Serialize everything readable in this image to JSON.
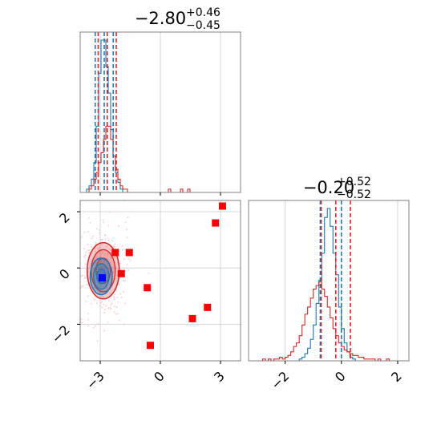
{
  "colors": {
    "blue": "#1f77b4",
    "red": "#d62728",
    "marker_red": "#ff0000",
    "marker_blue": "#0000ff",
    "grid": "#cccccc",
    "frame": "#808080"
  },
  "chart_data": [
    {
      "type": "histogram",
      "panel": "marginal-param1",
      "title_value": "−2.80",
      "title_plus": "+0.46",
      "title_minus": "−0.45",
      "xlim": [
        -4.0,
        4.0
      ],
      "grid": true,
      "dashed_lines": {
        "blue": [
          -3.25,
          -2.8,
          -2.35
        ],
        "red": [
          -3.1,
          -2.65,
          -2.2
        ]
      },
      "series": [
        {
          "color": "blue",
          "bin_width": 0.12,
          "bins_start": -3.8,
          "counts": [
            0,
            1,
            2,
            4,
            9,
            20,
            36,
            46,
            46,
            38,
            30,
            19,
            11,
            6,
            3,
            1,
            0
          ]
        },
        {
          "color": "red",
          "bin_width": 0.12,
          "bins_start": -3.8,
          "counts": [
            0,
            0,
            1,
            2,
            4,
            6,
            9,
            12,
            16,
            20,
            20,
            16,
            11,
            7,
            4,
            2,
            1,
            1,
            0,
            0,
            0,
            0,
            0,
            0,
            0,
            0,
            0,
            0,
            0,
            0,
            0,
            0,
            0,
            0,
            0,
            1,
            0,
            0,
            0,
            0,
            1,
            0,
            0,
            1,
            0,
            0,
            0,
            0,
            0,
            0,
            0,
            0,
            0,
            0,
            0,
            0,
            0,
            0,
            0,
            0
          ]
        }
      ]
    },
    {
      "type": "scatter",
      "panel": "joint-param1-param2",
      "xlim": [
        -4.0,
        4.0
      ],
      "ylim": [
        -3.3,
        2.4
      ],
      "x_ticks": [
        "−3",
        "0",
        "3"
      ],
      "x_tick_values": [
        -3,
        0,
        3
      ],
      "y_ticks": [
        "2",
        "0",
        "−2"
      ],
      "y_tick_values": [
        2,
        0,
        -2
      ],
      "grid": true,
      "red_markers": [
        {
          "x": 3.1,
          "y": 2.2
        },
        {
          "x": 2.75,
          "y": 1.6
        },
        {
          "x": -2.25,
          "y": 0.55
        },
        {
          "x": -1.55,
          "y": 0.55
        },
        {
          "x": -1.95,
          "y": -0.2
        },
        {
          "x": -0.65,
          "y": -0.7
        },
        {
          "x": 2.35,
          "y": -1.4
        },
        {
          "x": 1.6,
          "y": -1.8
        },
        {
          "x": -0.5,
          "y": -2.75
        }
      ],
      "blue_marker": {
        "x": -2.9,
        "y": -0.35
      },
      "red_contour": {
        "cx": -2.85,
        "cy": -0.1,
        "sx": 0.8,
        "sy": 1.0
      },
      "blue_contour": {
        "cx": -2.95,
        "cy": -0.3,
        "sx": 0.55,
        "sy": 0.65
      }
    },
    {
      "type": "histogram",
      "panel": "marginal-param2",
      "title_value": "−0.20",
      "title_plus": "+0.52",
      "title_minus": "−0.52",
      "xlim": [
        -3.3,
        2.4
      ],
      "x_ticks": [
        "−2",
        "0",
        "2"
      ],
      "x_tick_values": [
        -2,
        0,
        2
      ],
      "grid": true,
      "dashed_lines": {
        "blue": [
          -0.75,
          -0.73,
          0.0
        ],
        "red": [
          -0.72,
          -0.2,
          0.32
        ]
      },
      "series": [
        {
          "color": "blue",
          "bin_width": 0.1,
          "bins_start": -1.6,
          "counts": [
            0,
            1,
            2,
            4,
            7,
            12,
            20,
            32,
            45,
            60,
            80,
            85,
            75,
            60,
            48,
            30,
            18,
            10,
            5,
            2,
            1,
            0
          ]
        },
        {
          "color": "red",
          "bin_width": 0.1,
          "bins_start": -3.0,
          "counts": [
            0,
            0,
            1,
            0,
            1,
            0,
            1,
            1,
            2,
            1,
            2,
            3,
            5,
            8,
            10,
            14,
            20,
            26,
            30,
            35,
            40,
            42,
            44,
            40,
            36,
            30,
            24,
            18,
            14,
            10,
            8,
            6,
            5,
            4,
            3,
            3,
            2,
            2,
            1,
            1,
            1,
            1,
            0,
            1,
            0,
            0,
            1,
            0,
            0,
            0
          ]
        }
      ]
    }
  ]
}
